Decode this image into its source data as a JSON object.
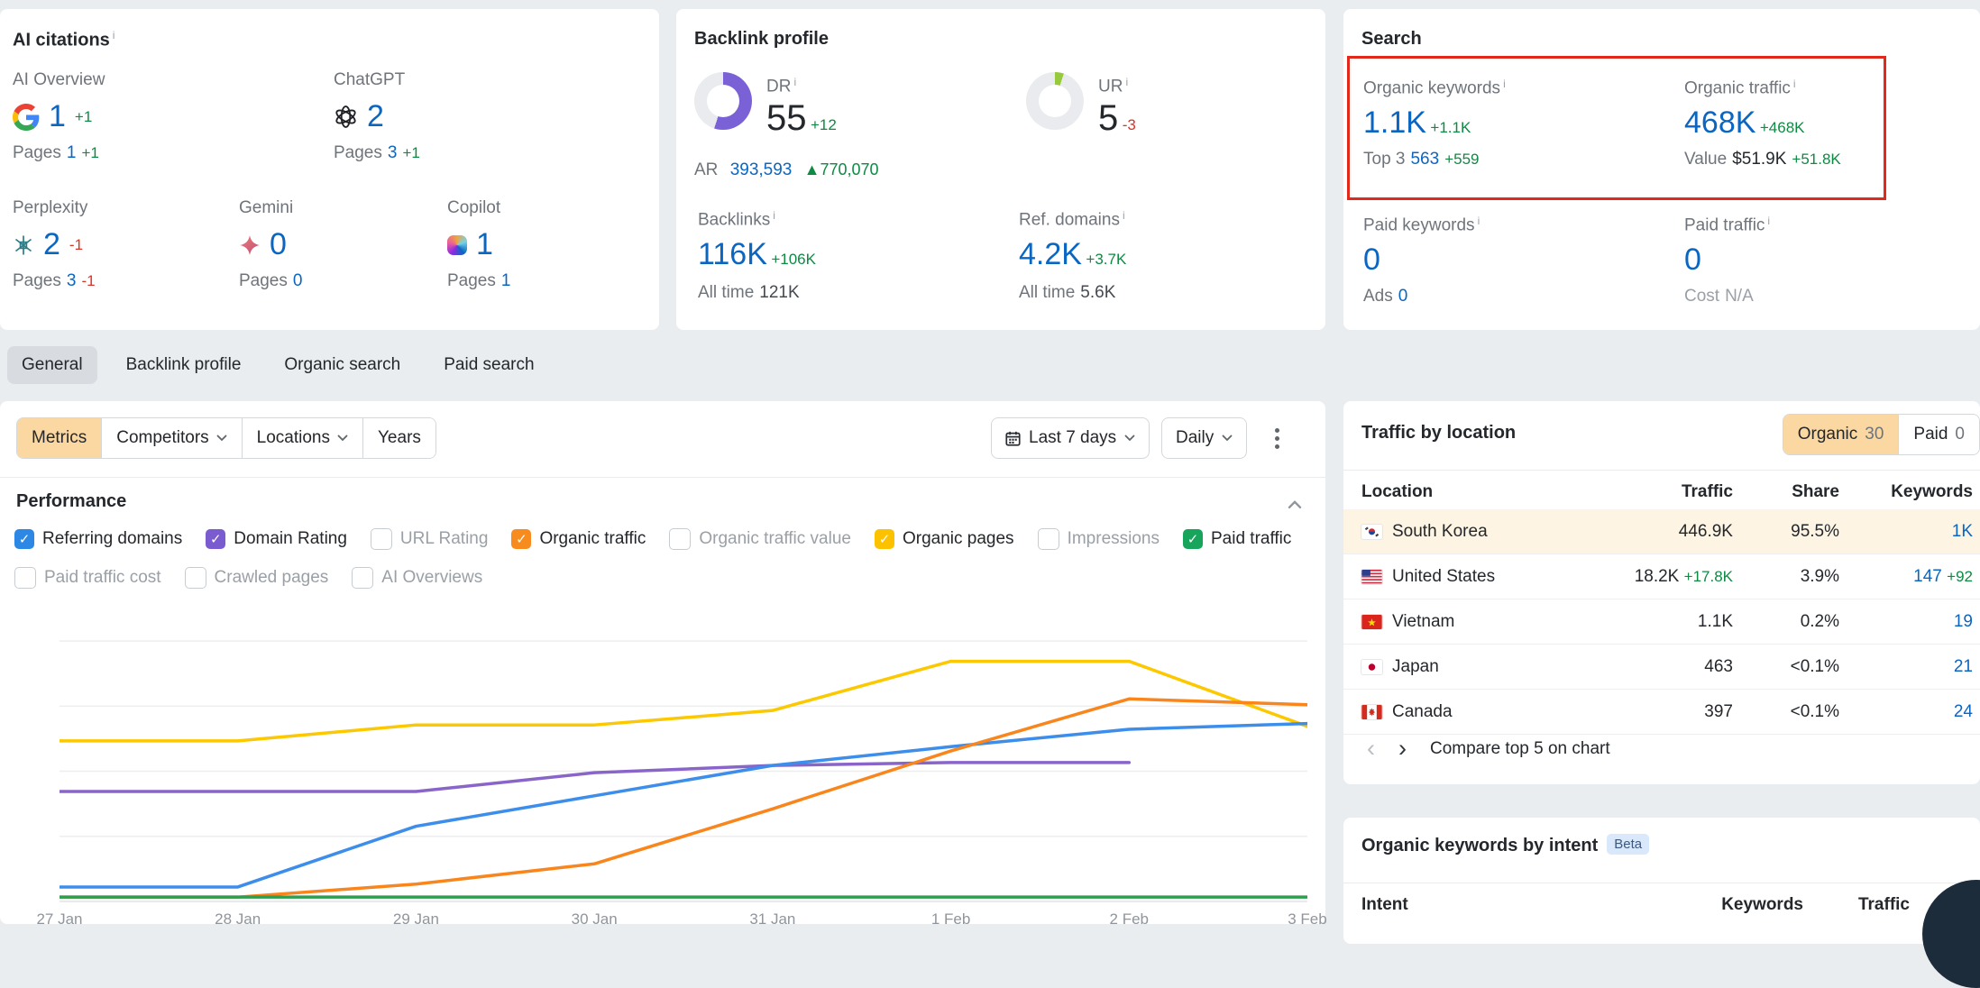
{
  "colors": {
    "positive": "#0e8a43",
    "negative": "#d63429",
    "value_blue": "#0b66c2",
    "highlight_red": "#e2271b",
    "active_filter_bg": "#fbd7a2",
    "row_highlight": "#fdf4e3",
    "dr_donut": "#7b61d6",
    "ur_donut": "#97c93d"
  },
  "ai_citations": {
    "title": "AI citations",
    "pages_label": "Pages",
    "metrics": [
      {
        "name": "AI Overview",
        "icon": "google-g",
        "value": "1",
        "delta": "+1",
        "pages": "1",
        "pages_delta": "+1"
      },
      {
        "name": "ChatGPT",
        "icon": "chatgpt",
        "value": "2",
        "delta": "",
        "pages": "3",
        "pages_delta": "+1"
      },
      {
        "name": "Perplexity",
        "icon": "perplexity",
        "value": "2",
        "delta": "-1",
        "pages": "3",
        "pages_delta": "-1"
      },
      {
        "name": "Gemini",
        "icon": "gemini",
        "value": "0",
        "delta": "",
        "pages": "0",
        "pages_delta": ""
      },
      {
        "name": "Copilot",
        "icon": "copilot",
        "value": "1",
        "delta": "",
        "pages": "1",
        "pages_delta": ""
      }
    ]
  },
  "backlink_profile": {
    "title": "Backlink profile",
    "dr": {
      "label": "DR",
      "value": "55",
      "delta": "+12",
      "percent": 55,
      "color": "#7b61d6"
    },
    "ar": {
      "label": "AR",
      "value": "393,593",
      "delta": "▲770,070"
    },
    "ur": {
      "label": "UR",
      "value": "5",
      "delta": "-3",
      "percent": 5,
      "color": "#97c93d"
    },
    "backlinks": {
      "label": "Backlinks",
      "value": "116K",
      "delta": "+106K",
      "alltime_label": "All time",
      "alltime_value": "121K"
    },
    "ref_domains": {
      "label": "Ref. domains",
      "value": "4.2K",
      "delta": "+3.7K",
      "alltime_label": "All time",
      "alltime_value": "5.6K"
    }
  },
  "search": {
    "title": "Search",
    "organic_keywords": {
      "label": "Organic keywords",
      "value": "1.1K",
      "delta": "+1.1K",
      "sub_label": "Top 3",
      "sub_value": "563",
      "sub_delta": "+559"
    },
    "organic_traffic": {
      "label": "Organic traffic",
      "value": "468K",
      "delta": "+468K",
      "sub_label": "Value",
      "sub_value": "$51.9K",
      "sub_delta": "+51.8K"
    },
    "paid_keywords": {
      "label": "Paid keywords",
      "value": "0",
      "sub_label": "Ads",
      "sub_value": "0"
    },
    "paid_traffic": {
      "label": "Paid traffic",
      "value": "0",
      "sub_label": "Cost",
      "sub_value": "N/A"
    }
  },
  "tabs": [
    {
      "label": "General"
    },
    {
      "label": "Backlink profile"
    },
    {
      "label": "Organic search"
    },
    {
      "label": "Paid search"
    }
  ],
  "filters": {
    "segments": [
      {
        "label": "Metrics"
      },
      {
        "label": "Competitors"
      },
      {
        "label": "Locations"
      },
      {
        "label": "Years"
      }
    ],
    "date_range": "Last 7 days",
    "granularity": "Daily"
  },
  "performance": {
    "title": "Performance",
    "metrics_row1": [
      {
        "label": "Referring domains",
        "checked": true,
        "color": "#2d87e4"
      },
      {
        "label": "Domain Rating",
        "checked": true,
        "color": "#7a5bd0"
      },
      {
        "label": "URL Rating",
        "checked": false
      },
      {
        "label": "Organic traffic",
        "checked": true,
        "color": "#f78b1e"
      },
      {
        "label": "Organic traffic value",
        "checked": false
      },
      {
        "label": "Organic pages",
        "checked": true,
        "color": "#fcc200"
      },
      {
        "label": "Impressions",
        "checked": false
      },
      {
        "label": "Paid traffic",
        "checked": true,
        "color": "#17a45b"
      }
    ],
    "metrics_row2": [
      {
        "label": "Paid traffic cost",
        "checked": false
      },
      {
        "label": "Crawled pages",
        "checked": false
      },
      {
        "label": "AI Overviews",
        "checked": false
      }
    ]
  },
  "chart_data": {
    "type": "line",
    "x_labels": [
      "27 Jan",
      "28 Jan",
      "29 Jan",
      "30 Jan",
      "31 Jan",
      "1 Feb",
      "2 Feb",
      "3 Feb"
    ],
    "ylim": [
      0,
      100
    ],
    "gridlines": [
      0,
      22.5,
      45,
      67.5,
      90
    ],
    "legend_position": "hidden",
    "series": [
      {
        "name": "Organic pages",
        "color": "#fcc800",
        "values": [
          55.5,
          55.5,
          61,
          61,
          66,
          83,
          83,
          60.5
        ]
      },
      {
        "name": "Domain Rating",
        "color": "#8a65c9",
        "values": [
          38,
          38,
          38,
          44.5,
          47,
          48,
          48,
          null
        ]
      },
      {
        "name": "Referring domains",
        "color": "#3d8deb",
        "values": [
          5,
          5,
          26,
          36.5,
          47,
          53.5,
          59.5,
          61.5
        ]
      },
      {
        "name": "Organic traffic",
        "color": "#f8861d",
        "values": [
          1.5,
          1.5,
          6,
          13,
          32,
          52,
          70,
          68
        ]
      },
      {
        "name": "Paid traffic",
        "color": "#2f9e4f",
        "values": [
          1.5,
          1.5,
          1.5,
          1.5,
          1.5,
          1.5,
          1.5,
          1.5
        ]
      }
    ]
  },
  "traffic_by_location": {
    "title": "Traffic by location",
    "toggle": {
      "organic_label": "Organic",
      "organic_count": "30",
      "paid_label": "Paid",
      "paid_count": "0"
    },
    "headers": {
      "location": "Location",
      "traffic": "Traffic",
      "share": "Share",
      "keywords": "Keywords"
    },
    "rows": [
      {
        "flag": "south-korea",
        "location": "South Korea",
        "traffic": "446.9K",
        "traffic_delta": "",
        "share": "95.5%",
        "keywords": "1K",
        "keywords_delta": ""
      },
      {
        "flag": "united-states",
        "location": "United States",
        "traffic": "18.2K",
        "traffic_delta": "+17.8K",
        "share": "3.9%",
        "keywords": "147",
        "keywords_delta": "+92"
      },
      {
        "flag": "vietnam",
        "location": "Vietnam",
        "traffic": "1.1K",
        "traffic_delta": "",
        "share": "0.2%",
        "keywords": "19",
        "keywords_delta": ""
      },
      {
        "flag": "japan",
        "location": "Japan",
        "traffic": "463",
        "traffic_delta": "",
        "share": "<0.1%",
        "keywords": "21",
        "keywords_delta": ""
      },
      {
        "flag": "canada",
        "location": "Canada",
        "traffic": "397",
        "traffic_delta": "",
        "share": "<0.1%",
        "keywords": "24",
        "keywords_delta": ""
      }
    ],
    "compare_label": "Compare top 5 on chart"
  },
  "keywords_by_intent": {
    "title": "Organic keywords by intent",
    "badge": "Beta",
    "headers": {
      "intent": "Intent",
      "keywords": "Keywords",
      "traffic": "Traffic"
    }
  }
}
